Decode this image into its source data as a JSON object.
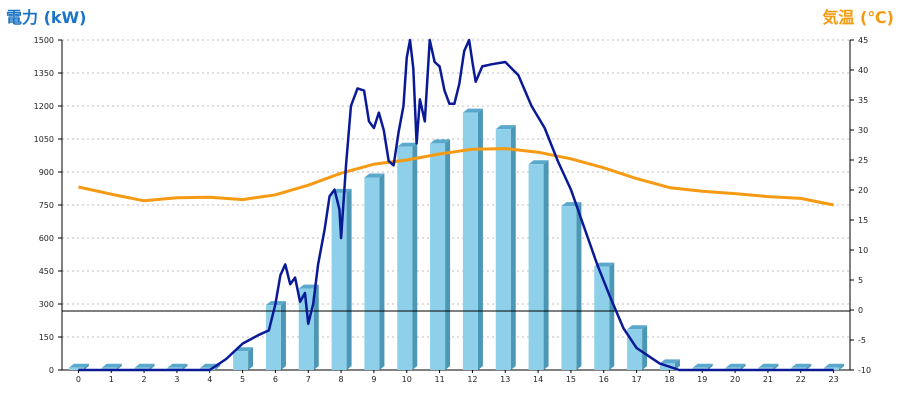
{
  "chart_data": {
    "type": "bar",
    "ylabel_left": "電力 (kW)",
    "ylabel_right": "気温 (℃)",
    "categories": [
      "0",
      "1",
      "2",
      "3",
      "4",
      "5",
      "6",
      "7",
      "8",
      "9",
      "10",
      "11",
      "12",
      "13",
      "14",
      "15",
      "16",
      "17",
      "18",
      "19",
      "20",
      "21",
      "22",
      "23"
    ],
    "ylim_left": [
      0,
      1500
    ],
    "ylim_right": [
      -10,
      45
    ],
    "yticks_left": [
      0,
      150,
      300,
      450,
      600,
      750,
      900,
      1050,
      1200,
      1350,
      1500
    ],
    "yticks_right": [
      -10,
      -5,
      0,
      5,
      10,
      15,
      20,
      25,
      30,
      35,
      40,
      45
    ],
    "grid": true,
    "series": [
      {
        "kind": "bar",
        "axis": "left",
        "values": [
          10,
          10,
          10,
          10,
          10,
          85,
          295,
          370,
          805,
          875,
          1015,
          1030,
          1170,
          1095,
          935,
          745,
          470,
          185,
          30,
          10,
          10,
          10,
          10,
          10
        ]
      },
      {
        "kind": "line",
        "axis": "left",
        "x": [
          0,
          4,
          4.5,
          5,
          5.5,
          5.8,
          6,
          6.15,
          6.3,
          6.45,
          6.6,
          6.75,
          6.9,
          7,
          7.15,
          7.3,
          7.5,
          7.65,
          7.8,
          7.95,
          8,
          8.15,
          8.3,
          8.5,
          8.7,
          8.85,
          9,
          9.15,
          9.3,
          9.45,
          9.6,
          9.75,
          9.9,
          10,
          10.1,
          10.2,
          10.3,
          10.4,
          10.55,
          10.7,
          10.85,
          11,
          11.15,
          11.3,
          11.45,
          11.6,
          11.75,
          11.9,
          12,
          12.1,
          12.3,
          12.6,
          13,
          13.4,
          13.8,
          14.2,
          14.6,
          15,
          15.4,
          15.8,
          16.2,
          16.6,
          17,
          17.4,
          17.7,
          18,
          18.3,
          19,
          23
        ],
        "y": [
          0,
          0,
          50,
          120,
          160,
          180,
          300,
          430,
          480,
          390,
          420,
          310,
          350,
          210,
          300,
          480,
          640,
          790,
          820,
          730,
          600,
          930,
          1200,
          1280,
          1270,
          1130,
          1100,
          1170,
          1090,
          950,
          930,
          1080,
          1200,
          1420,
          1500,
          1370,
          1030,
          1230,
          1130,
          1500,
          1400,
          1380,
          1270,
          1210,
          1210,
          1300,
          1450,
          1500,
          1400,
          1310,
          1380,
          1390,
          1400,
          1340,
          1200,
          1100,
          950,
          820,
          650,
          480,
          330,
          190,
          100,
          60,
          30,
          15,
          0,
          0,
          0
        ]
      },
      {
        "kind": "line",
        "axis": "right",
        "x": [
          0,
          1,
          2,
          3,
          4,
          5,
          6,
          7,
          8,
          9,
          10,
          11,
          12,
          13,
          14,
          15,
          16,
          17,
          18,
          19,
          20,
          21,
          22,
          23
        ],
        "y": [
          20.5,
          19.3,
          18.2,
          18.7,
          18.8,
          18.4,
          19.2,
          20.8,
          22.8,
          24.3,
          25.0,
          26.0,
          26.8,
          26.9,
          26.3,
          25.2,
          23.7,
          21.9,
          20.4,
          19.8,
          19.4,
          18.9,
          18.6,
          17.5
        ]
      }
    ],
    "reference_line_left": 268
  },
  "colors": {
    "bar_face": "#8ecfea",
    "bar_side": "#4c96b6",
    "bar_top": "#5aa9cc",
    "power_line": "#0a1996",
    "temp_line": "#f59a12",
    "grid": "#bdbdbd",
    "axis_label_left": "#1b74c4",
    "axis_label_right": "#f39c12"
  }
}
